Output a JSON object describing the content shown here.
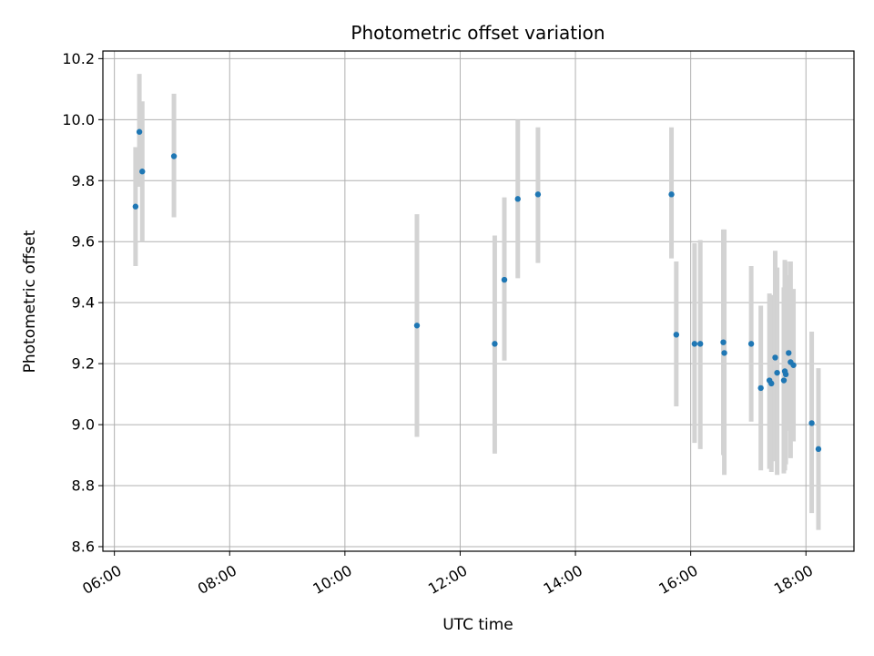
{
  "chart_data": {
    "type": "scatter",
    "title": "Photometric offset variation",
    "xlabel": "UTC time",
    "ylabel": "Photometric offset",
    "xlim": [
      "05:48",
      "18:50"
    ],
    "ylim": [
      8.585,
      10.225
    ],
    "x_ticks": [
      "06:00",
      "08:00",
      "10:00",
      "12:00",
      "14:00",
      "16:00",
      "18:00"
    ],
    "y_ticks": [
      "8.6",
      "8.8",
      "9.0",
      "9.2",
      "9.4",
      "9.6",
      "9.8",
      "10.0",
      "10.2"
    ],
    "grid": true,
    "point_color": "#1f77b4",
    "errorbar_color": "#d3d3d3",
    "points": [
      {
        "x": "06:22",
        "y": 9.715,
        "ylow": 9.52,
        "yhigh": 9.91
      },
      {
        "x": "06:26",
        "y": 9.96,
        "ylow": 9.78,
        "yhigh": 10.15
      },
      {
        "x": "06:29",
        "y": 9.83,
        "ylow": 9.6,
        "yhigh": 10.06
      },
      {
        "x": "07:02",
        "y": 9.88,
        "ylow": 9.68,
        "yhigh": 10.085
      },
      {
        "x": "11:15",
        "y": 9.325,
        "ylow": 8.96,
        "yhigh": 9.69
      },
      {
        "x": "12:36",
        "y": 9.265,
        "ylow": 8.905,
        "yhigh": 9.62
      },
      {
        "x": "12:46",
        "y": 9.475,
        "ylow": 9.21,
        "yhigh": 9.745
      },
      {
        "x": "13:00",
        "y": 9.74,
        "ylow": 9.48,
        "yhigh": 10.0
      },
      {
        "x": "13:21",
        "y": 9.755,
        "ylow": 9.53,
        "yhigh": 9.975
      },
      {
        "x": "15:40",
        "y": 9.755,
        "ylow": 9.545,
        "yhigh": 9.975
      },
      {
        "x": "15:45",
        "y": 9.295,
        "ylow": 9.06,
        "yhigh": 9.535
      },
      {
        "x": "16:04",
        "y": 9.265,
        "ylow": 8.94,
        "yhigh": 9.595
      },
      {
        "x": "16:10",
        "y": 9.265,
        "ylow": 8.92,
        "yhigh": 9.605
      },
      {
        "x": "16:34",
        "y": 9.27,
        "ylow": 8.9,
        "yhigh": 9.64
      },
      {
        "x": "16:35",
        "y": 9.235,
        "ylow": 8.835,
        "yhigh": 9.64
      },
      {
        "x": "17:03",
        "y": 9.265,
        "ylow": 9.01,
        "yhigh": 9.52
      },
      {
        "x": "17:13",
        "y": 9.12,
        "ylow": 8.85,
        "yhigh": 9.39
      },
      {
        "x": "17:22",
        "y": 9.145,
        "ylow": 8.855,
        "yhigh": 9.43
      },
      {
        "x": "17:24",
        "y": 9.135,
        "ylow": 8.845,
        "yhigh": 9.425
      },
      {
        "x": "17:28",
        "y": 9.22,
        "ylow": 8.88,
        "yhigh": 9.57
      },
      {
        "x": "17:30",
        "y": 9.17,
        "ylow": 8.835,
        "yhigh": 9.515
      },
      {
        "x": "17:37",
        "y": 9.145,
        "ylow": 8.84,
        "yhigh": 9.45
      },
      {
        "x": "17:38",
        "y": 9.175,
        "ylow": 8.85,
        "yhigh": 9.54
      },
      {
        "x": "17:39",
        "y": 9.165,
        "ylow": 8.87,
        "yhigh": 9.535
      },
      {
        "x": "17:42",
        "y": 9.235,
        "ylow": 8.98,
        "yhigh": 9.49
      },
      {
        "x": "17:44",
        "y": 9.205,
        "ylow": 8.89,
        "yhigh": 9.535
      },
      {
        "x": "17:47",
        "y": 9.195,
        "ylow": 8.945,
        "yhigh": 9.445
      },
      {
        "x": "18:06",
        "y": 9.005,
        "ylow": 8.71,
        "yhigh": 9.305
      },
      {
        "x": "18:13",
        "y": 8.92,
        "ylow": 8.655,
        "yhigh": 9.185
      }
    ]
  }
}
